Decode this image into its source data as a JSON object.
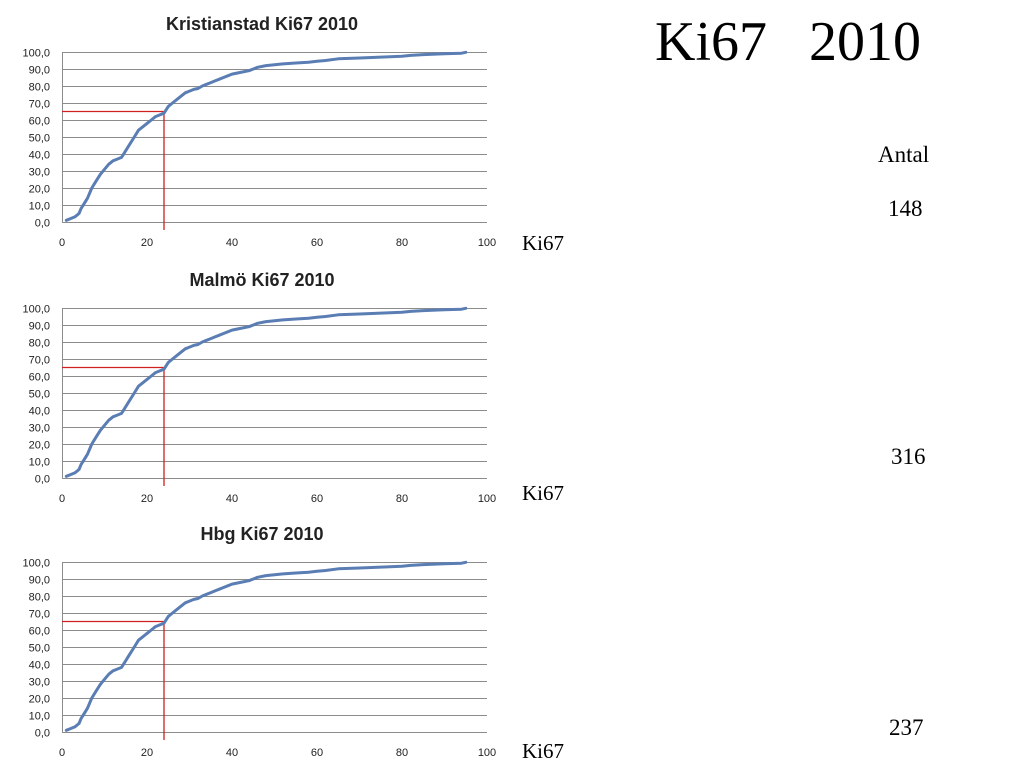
{
  "slide": {
    "title": "Ki67   2010",
    "count_header": "Antal",
    "x_unit_label": "Ki67"
  },
  "colors": {
    "series": "#5a7db4",
    "marker": "#d02020",
    "grid": "#8c8c8c"
  },
  "chart_data": [
    {
      "type": "line",
      "title": "Kristianstad Ki67 2010",
      "count": "148",
      "xlim": [
        0,
        100
      ],
      "ylim": [
        0,
        100
      ],
      "x_ticks": [
        "0",
        "20",
        "40",
        "60",
        "80",
        "100"
      ],
      "y_ticks": [
        "0,0",
        "10,0",
        "20,0",
        "30,0",
        "40,0",
        "50,0",
        "60,0",
        "70,0",
        "80,0",
        "90,0",
        "100,0"
      ],
      "grid": true,
      "marker": {
        "x": 24,
        "y": 65
      },
      "x": [
        1,
        2,
        3,
        4,
        4.5,
        5,
        6,
        7,
        8,
        9,
        10,
        11,
        12,
        13,
        14,
        15,
        16,
        17,
        18,
        19,
        20,
        21,
        22,
        23,
        24,
        25,
        26,
        27,
        28,
        29,
        30,
        31,
        32,
        33,
        34,
        35,
        36,
        37,
        38,
        39,
        40,
        42,
        44,
        45,
        46,
        48,
        50,
        52,
        55,
        58,
        60,
        62,
        65,
        70,
        75,
        80,
        82,
        85,
        90,
        94,
        95
      ],
      "y": [
        1,
        2,
        3,
        5,
        8,
        10,
        14,
        20,
        24,
        28,
        31,
        34,
        36,
        37,
        38,
        42,
        46,
        50,
        54,
        56,
        58,
        60,
        62,
        63,
        64,
        68,
        70,
        72,
        74,
        76,
        77,
        78,
        78.5,
        80,
        81,
        82,
        83,
        84,
        85,
        86,
        87,
        88,
        89,
        90,
        91,
        92,
        92.5,
        93,
        93.5,
        94,
        94.5,
        95,
        96,
        96.5,
        97,
        97.5,
        98,
        98.5,
        99,
        99.3,
        99.8
      ]
    },
    {
      "type": "line",
      "title": "Malmö Ki67 2010",
      "count": "316",
      "xlim": [
        0,
        100
      ],
      "ylim": [
        0,
        100
      ],
      "x_ticks": [
        "0",
        "20",
        "40",
        "60",
        "80",
        "100"
      ],
      "y_ticks": [
        "0,0",
        "10,0",
        "20,0",
        "30,0",
        "40,0",
        "50,0",
        "60,0",
        "70,0",
        "80,0",
        "90,0",
        "100,0"
      ],
      "grid": true,
      "marker": {
        "x": 24,
        "y": 65
      },
      "x": [
        1,
        2,
        3,
        4,
        4.5,
        5,
        6,
        7,
        8,
        9,
        10,
        11,
        12,
        13,
        14,
        15,
        16,
        17,
        18,
        19,
        20,
        21,
        22,
        23,
        24,
        25,
        26,
        27,
        28,
        29,
        30,
        31,
        32,
        33,
        34,
        35,
        36,
        37,
        38,
        39,
        40,
        42,
        44,
        45,
        46,
        48,
        50,
        52,
        55,
        58,
        60,
        62,
        65,
        70,
        75,
        80,
        82,
        85,
        90,
        94,
        95
      ],
      "y": [
        1,
        2,
        3,
        5,
        8,
        10,
        14,
        20,
        24,
        28,
        31,
        34,
        36,
        37,
        38,
        42,
        46,
        50,
        54,
        56,
        58,
        60,
        62,
        63,
        64,
        68,
        70,
        72,
        74,
        76,
        77,
        78,
        78.5,
        80,
        81,
        82,
        83,
        84,
        85,
        86,
        87,
        88,
        89,
        90,
        91,
        92,
        92.5,
        93,
        93.5,
        94,
        94.5,
        95,
        96,
        96.5,
        97,
        97.5,
        98,
        98.5,
        99,
        99.3,
        99.8
      ]
    },
    {
      "type": "line",
      "title": "Hbg Ki67 2010",
      "count": "237",
      "xlim": [
        0,
        100
      ],
      "ylim": [
        0,
        100
      ],
      "x_ticks": [
        "0",
        "20",
        "40",
        "60",
        "80",
        "100"
      ],
      "y_ticks": [
        "0,0",
        "10,0",
        "20,0",
        "30,0",
        "40,0",
        "50,0",
        "60,0",
        "70,0",
        "80,0",
        "90,0",
        "100,0"
      ],
      "grid": true,
      "marker": {
        "x": 24,
        "y": 65
      },
      "x": [
        1,
        2,
        3,
        4,
        4.5,
        5,
        6,
        7,
        8,
        9,
        10,
        11,
        12,
        13,
        14,
        15,
        16,
        17,
        18,
        19,
        20,
        21,
        22,
        23,
        24,
        25,
        26,
        27,
        28,
        29,
        30,
        31,
        32,
        33,
        34,
        35,
        36,
        37,
        38,
        39,
        40,
        42,
        44,
        45,
        46,
        48,
        50,
        52,
        55,
        58,
        60,
        62,
        65,
        70,
        75,
        80,
        82,
        85,
        90,
        94,
        95
      ],
      "y": [
        1,
        2,
        3,
        5,
        8,
        10,
        14,
        20,
        24,
        28,
        31,
        34,
        36,
        37,
        38,
        42,
        46,
        50,
        54,
        56,
        58,
        60,
        62,
        63,
        64,
        68,
        70,
        72,
        74,
        76,
        77,
        78,
        78.5,
        80,
        81,
        82,
        83,
        84,
        85,
        86,
        87,
        88,
        89,
        90,
        91,
        92,
        92.5,
        93,
        93.5,
        94,
        94.5,
        95,
        96,
        96.5,
        97,
        97.5,
        98,
        98.5,
        99,
        99.3,
        99.8
      ]
    }
  ]
}
